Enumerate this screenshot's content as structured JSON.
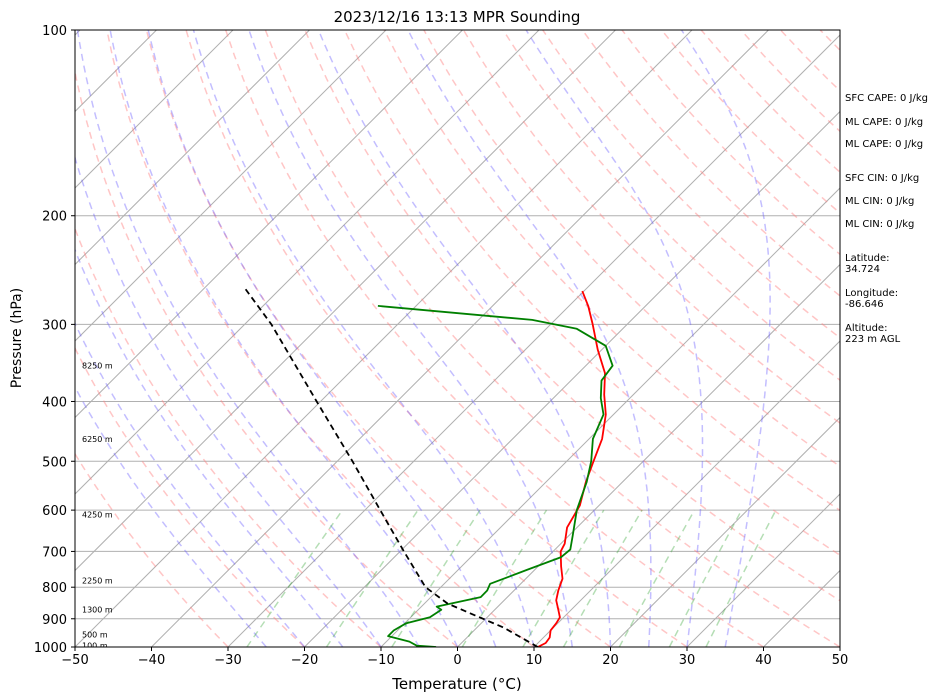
{
  "chart_data": {
    "type": "line",
    "title": "2023/12/16 13:13 MPR Sounding",
    "xlabel": "Temperature (°C)",
    "ylabel": "Pressure (hPa)",
    "xlim": [
      -50,
      50
    ],
    "ylim": [
      1000,
      100
    ],
    "y_scale": "log",
    "x_ticks": [
      "−50",
      "−40",
      "−30",
      "−20",
      "−10",
      "0",
      "10",
      "20",
      "30",
      "40",
      "50"
    ],
    "y_ticks": [
      "100",
      "200",
      "300",
      "400",
      "500",
      "600",
      "700",
      "800",
      "900",
      "1000"
    ],
    "grid": true,
    "height_labels": [
      {
        "pressure": 350,
        "label": "8250 m"
      },
      {
        "pressure": 460,
        "label": "6250 m"
      },
      {
        "pressure": 610,
        "label": "4250 m"
      },
      {
        "pressure": 780,
        "label": "2250 m"
      },
      {
        "pressure": 870,
        "label": "1300 m"
      },
      {
        "pressure": 955,
        "label": "500 m"
      },
      {
        "pressure": 995,
        "label": "100 m"
      }
    ],
    "series": [
      {
        "color": "#ff0000",
        "points": [
          [
            1000,
            10.5
          ],
          [
            985,
            11.0
          ],
          [
            965,
            10.8
          ],
          [
            940,
            10.0
          ],
          [
            915,
            9.8
          ],
          [
            895,
            9.5
          ],
          [
            870,
            8.3
          ],
          [
            840,
            6.8
          ],
          [
            810,
            5.8
          ],
          [
            775,
            4.8
          ],
          [
            740,
            3.0
          ],
          [
            700,
            1.0
          ],
          [
            680,
            0.5
          ],
          [
            640,
            -1.3
          ],
          [
            590,
            -2.5
          ],
          [
            540,
            -4.8
          ],
          [
            500,
            -6.5
          ],
          [
            460,
            -8.3
          ],
          [
            420,
            -11.0
          ],
          [
            390,
            -13.8
          ],
          [
            360,
            -16.5
          ],
          [
            330,
            -20.5
          ],
          [
            300,
            -24.5
          ],
          [
            280,
            -27.5
          ],
          [
            265,
            -30.2
          ]
        ]
      },
      {
        "color": "#008000",
        "points": [
          [
            1000,
            -2.8
          ],
          [
            995,
            -5.5
          ],
          [
            980,
            -7.0
          ],
          [
            960,
            -10.5
          ],
          [
            940,
            -10.5
          ],
          [
            915,
            -9.8
          ],
          [
            895,
            -7.5
          ],
          [
            870,
            -7.0
          ],
          [
            860,
            -8.0
          ],
          [
            830,
            -3.5
          ],
          [
            810,
            -3.5
          ],
          [
            790,
            -4.0
          ],
          [
            750,
            -1.0
          ],
          [
            715,
            1.8
          ],
          [
            695,
            2.0
          ],
          [
            660,
            0.5
          ],
          [
            600,
            -2.3
          ],
          [
            540,
            -4.7
          ],
          [
            500,
            -6.8
          ],
          [
            460,
            -9.5
          ],
          [
            420,
            -11.3
          ],
          [
            395,
            -13.8
          ],
          [
            370,
            -16.0
          ],
          [
            350,
            -16.5
          ],
          [
            325,
            -20.0
          ],
          [
            305,
            -26.0
          ],
          [
            295,
            -33.0
          ],
          [
            280,
            -55.0
          ]
        ]
      },
      {
        "color": "#000000",
        "dash": "6,4",
        "points": [
          [
            1000,
            10.5
          ],
          [
            930,
            3.5
          ],
          [
            880,
            -3.0
          ],
          [
            850,
            -7.0
          ],
          [
            800,
            -12.0
          ],
          [
            700,
            -19.5
          ],
          [
            600,
            -28.0
          ],
          [
            500,
            -38.0
          ],
          [
            400,
            -50.5
          ],
          [
            300,
            -66.5
          ],
          [
            263,
            -74.5
          ]
        ]
      }
    ],
    "dry_adiabats_c": [
      -30,
      -20,
      -10,
      0,
      10,
      20,
      30,
      40,
      50,
      60,
      70,
      80,
      90,
      100,
      110,
      120,
      130,
      140,
      150,
      160,
      170,
      180,
      190,
      200,
      210,
      220,
      230,
      240,
      250,
      260,
      270,
      280,
      290,
      300
    ],
    "moist_adiabats_c": [
      -25,
      -20,
      -15,
      -10,
      -5,
      0,
      5,
      10,
      15,
      20,
      25,
      30,
      35
    ],
    "mixing_ratios_gkg": [
      0.4,
      1,
      2,
      4,
      7,
      10,
      16,
      24,
      32
    ]
  },
  "side": {
    "sfc_cape": "SFC CAPE: 0 J/kg",
    "ml_cape_1": "ML CAPE: 0 J/kg",
    "ml_cape_2": "ML CAPE: 0 J/kg",
    "sfc_cin": "SFC CIN: 0 J/kg",
    "ml_cin_1": "ML CIN: 0 J/kg",
    "ml_cin_2": "ML CIN: 0 J/kg",
    "latitude": "Latitude:\n34.724",
    "longitude": "Longitude:\n-86.646",
    "altitude": "Altitude:\n223 m AGL"
  }
}
